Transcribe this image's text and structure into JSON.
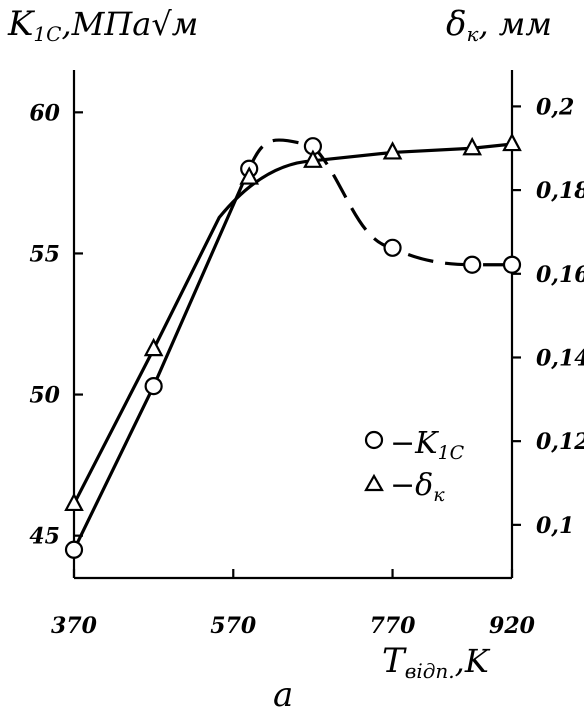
{
  "chart_data": {
    "type": "line",
    "left_axis": {
      "label": "K",
      "sub": "1C",
      "unit": ",МПа√м",
      "range": [
        43.5,
        61.5
      ],
      "ticks": [
        "45",
        "50",
        "55",
        "60"
      ]
    },
    "right_axis": {
      "label": "δ",
      "sub": "к",
      "unit": ", мм",
      "range": [
        0.0873,
        0.2087
      ],
      "ticks": [
        "0,1",
        "0,12",
        "0,14",
        "0,16",
        "0,18",
        "0,2"
      ]
    },
    "x_axis": {
      "label": "T",
      "sub": "відп.",
      "unit": ",K",
      "range": [
        370,
        920
      ],
      "ticks": [
        "370",
        "570",
        "770",
        "920"
      ]
    },
    "series": [
      {
        "name": "K1C",
        "axis": "left",
        "marker": "circle",
        "x": [
          370,
          470,
          590,
          670,
          770,
          870,
          920
        ],
        "y": [
          44.5,
          50.3,
          58.0,
          58.8,
          55.2,
          54.6,
          54.6
        ]
      },
      {
        "name": "δк",
        "axis": "right",
        "marker": "triangle",
        "x": [
          370,
          470,
          590,
          670,
          770,
          870,
          920
        ],
        "y": [
          0.105,
          0.142,
          0.183,
          0.187,
          0.189,
          0.19,
          0.191
        ]
      }
    ],
    "legend": {
      "placement": "lower-right",
      "items": [
        {
          "dash": "−",
          "label": "K",
          "sub": "1C"
        },
        {
          "dash": "−",
          "label": "δ",
          "sub": "к"
        }
      ]
    },
    "caption": "а"
  }
}
